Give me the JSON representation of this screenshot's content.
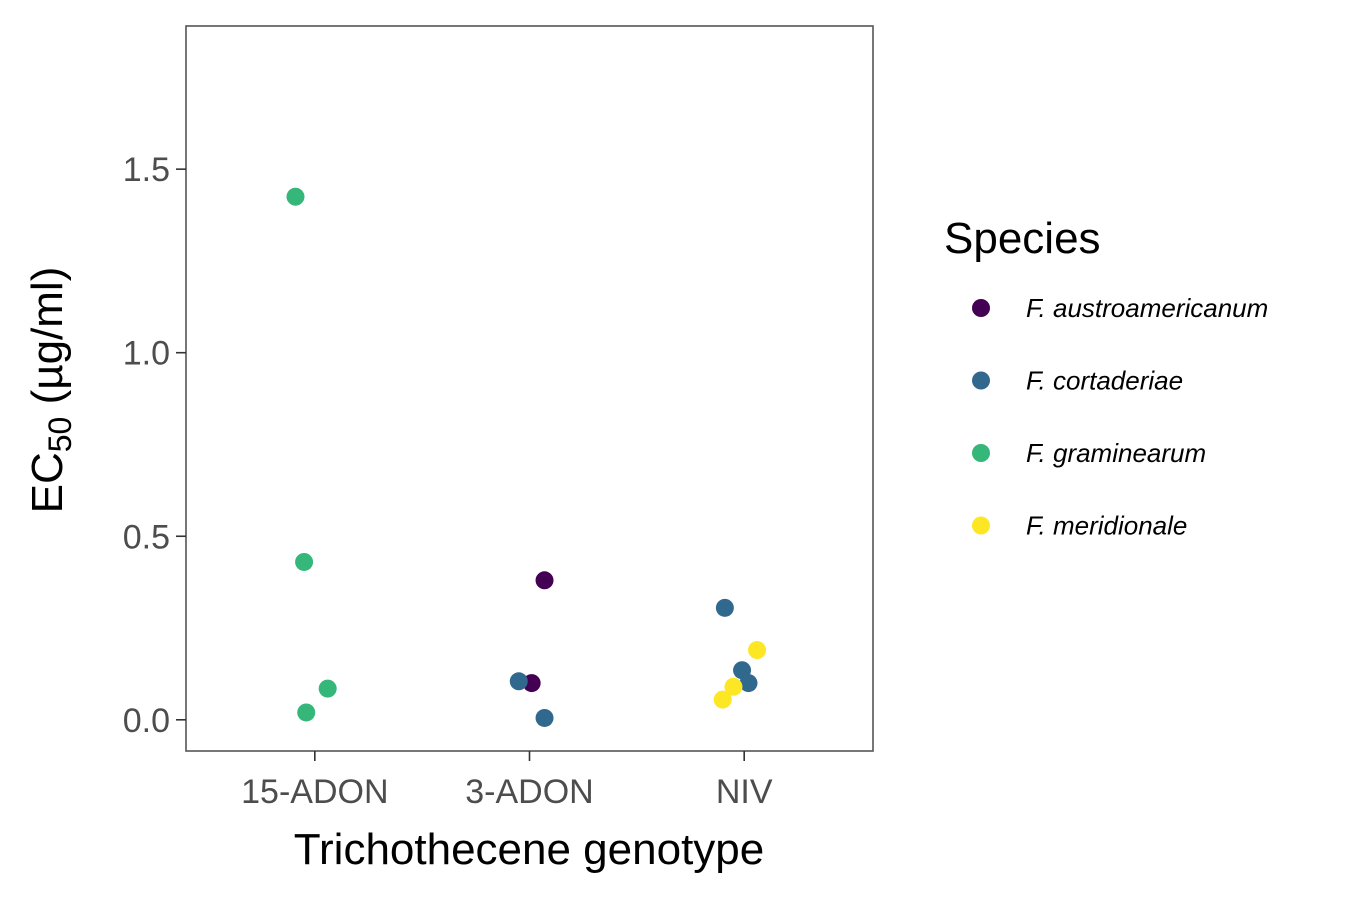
{
  "chart_data": {
    "type": "scatter",
    "xlabel": "Trichothecene genotype",
    "ylabel": "EC",
    "ylabel_subscript": "50",
    "ylabel_unit": " (µg/ml)",
    "categories": [
      "15-ADON",
      "3-ADON",
      "NIV"
    ],
    "ylim": [
      -0.085,
      1.89
    ],
    "yticks": [
      0.0,
      0.5,
      1.0,
      1.5
    ],
    "ytick_labels": [
      "0.0",
      "0.5",
      "1.0",
      "1.5"
    ],
    "grid": false,
    "legend": {
      "title": "Species",
      "placement": "right",
      "entries": [
        {
          "label": "F. austroamericanum",
          "color": "#440154"
        },
        {
          "label": "F. cortaderiae",
          "color": "#31688e"
        },
        {
          "label": "F. graminearum",
          "color": "#35b779"
        },
        {
          "label": "F. meridionale",
          "color": "#fde725"
        }
      ]
    },
    "series": [
      {
        "name": "F. austroamericanum",
        "color": "#440154",
        "points": [
          {
            "x": "3-ADON",
            "jitter": 0.07,
            "y": 0.38
          },
          {
            "x": "3-ADON",
            "jitter": 0.01,
            "y": 0.1
          }
        ]
      },
      {
        "name": "F. cortaderiae",
        "color": "#31688e",
        "points": [
          {
            "x": "3-ADON",
            "jitter": -0.05,
            "y": 0.105
          },
          {
            "x": "3-ADON",
            "jitter": 0.07,
            "y": 0.005
          },
          {
            "x": "NIV",
            "jitter": -0.09,
            "y": 0.305
          },
          {
            "x": "NIV",
            "jitter": -0.01,
            "y": 0.135
          },
          {
            "x": "NIV",
            "jitter": 0.02,
            "y": 0.1
          }
        ]
      },
      {
        "name": "F. graminearum",
        "color": "#35b779",
        "points": [
          {
            "x": "15-ADON",
            "jitter": -0.09,
            "y": 1.425
          },
          {
            "x": "15-ADON",
            "jitter": -0.05,
            "y": 0.43
          },
          {
            "x": "15-ADON",
            "jitter": 0.06,
            "y": 0.085
          },
          {
            "x": "15-ADON",
            "jitter": -0.04,
            "y": 0.02
          }
        ]
      },
      {
        "name": "F. meridionale",
        "color": "#fde725",
        "points": [
          {
            "x": "NIV",
            "jitter": 0.06,
            "y": 0.19
          },
          {
            "x": "NIV",
            "jitter": -0.05,
            "y": 0.09
          },
          {
            "x": "NIV",
            "jitter": -0.1,
            "y": 0.055
          }
        ]
      }
    ]
  }
}
